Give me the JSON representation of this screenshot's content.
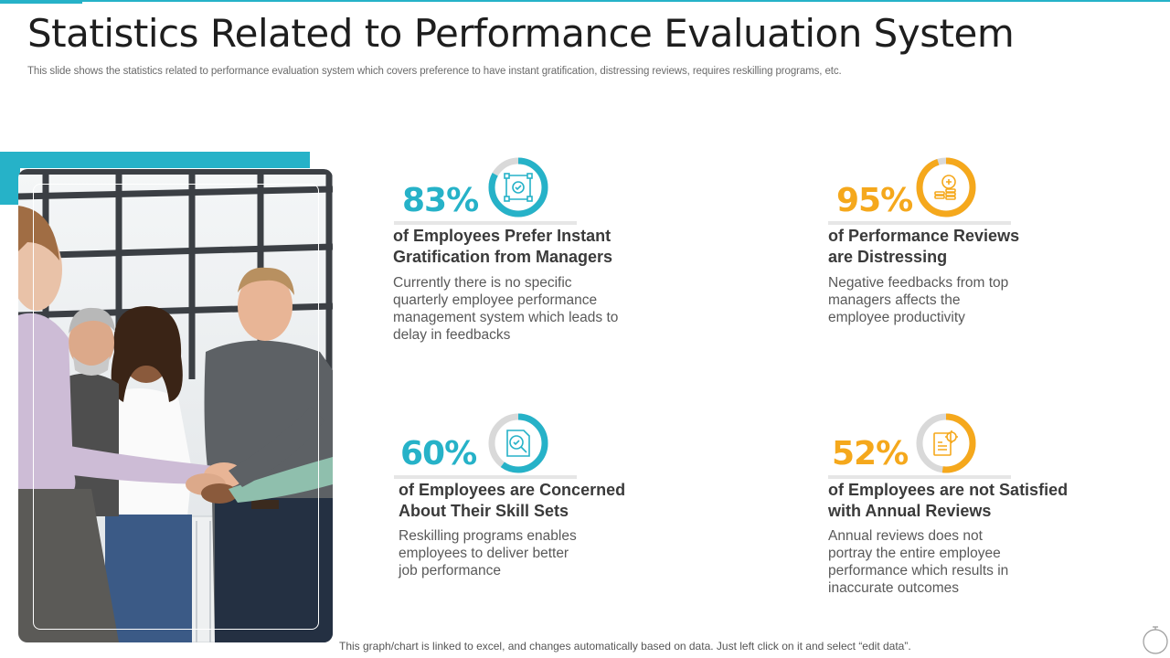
{
  "header": {
    "title": "Statistics Related to Performance Evaluation System",
    "subtitle": "This slide shows the statistics related to performance evaluation system which covers preference to have instant gratification, distressing reviews, requires reskilling programs, etc."
  },
  "colors": {
    "teal": "#26b2c8",
    "gold": "#f5a81c",
    "ring_track": "#d9d9d9"
  },
  "stats": [
    {
      "value": "83%",
      "fraction": 0.83,
      "color": "#26b2c8",
      "icon": "network-check-icon",
      "heading_lines": [
        "of Employees Prefer Instant",
        "Gratification from Managers"
      ],
      "desc_lines": [
        "Currently there is no specific",
        "quarterly employee performance",
        "management system which leads to",
        "delay in feedbacks"
      ]
    },
    {
      "value": "95%",
      "fraction": 0.95,
      "color": "#f5a81c",
      "icon": "coins-chart-icon",
      "heading_lines": [
        "of Performance Reviews",
        "are Distressing"
      ],
      "desc_lines": [
        "Negative feedbacks from top",
        "managers affects the",
        "employee productivity"
      ]
    },
    {
      "value": "60%",
      "fraction": 0.6,
      "color": "#26b2c8",
      "icon": "magnifier-check-icon",
      "heading_lines": [
        "of Employees are Concerned",
        "About Their Skill Sets"
      ],
      "desc_lines": [
        "Reskilling programs enables",
        "employees to deliver better",
        "job performance"
      ]
    },
    {
      "value": "52%",
      "fraction": 0.52,
      "color": "#f5a81c",
      "icon": "gear-document-icon",
      "heading_lines": [
        "of Employees are not Satisfied",
        "with Annual Reviews"
      ],
      "desc_lines": [
        "Annual reviews does not",
        "portray the entire employee",
        "performance which results in",
        "inaccurate outcomes"
      ]
    }
  ],
  "footer": {
    "note": "This graph/chart is linked to excel, and changes automatically based on data. Just left click on it and select “edit data”."
  }
}
